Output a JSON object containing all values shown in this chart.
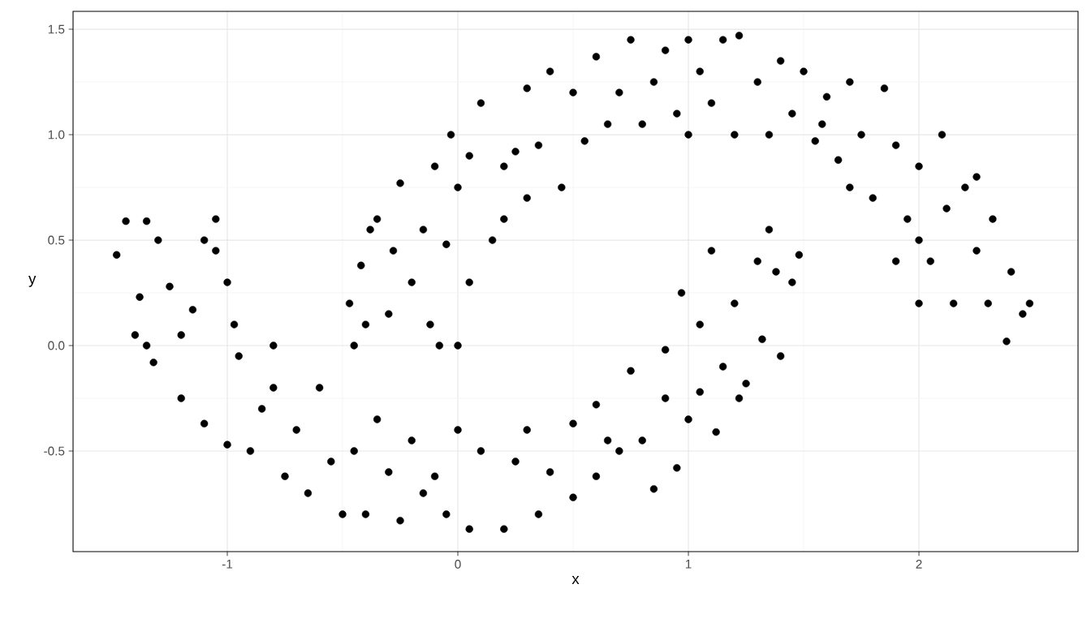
{
  "chart_data": {
    "type": "scatter",
    "xlabel": "x",
    "ylabel": "y",
    "xlim": [
      -1.669,
      2.69
    ],
    "ylim": [
      -0.977,
      1.585
    ],
    "xticks": [
      -1,
      0,
      1,
      2
    ],
    "yticks": [
      -0.5,
      {
        "value": 0,
        "label": "0.0"
      },
      0.5,
      {
        "value": 1,
        "label": "1.0"
      },
      1.5
    ],
    "grid": true,
    "marker": "circle",
    "series": [
      {
        "color": "#000000",
        "x": [
          -1.48,
          -1.44,
          -1.38,
          -1.35,
          -1.3,
          -1.35,
          -1.32,
          -1.25,
          -1.2,
          -1.15,
          -1.1,
          -1.05,
          -1.05,
          -1.1,
          -1.0,
          -1.0,
          -0.95,
          -0.9,
          -0.85,
          -0.8,
          -0.75,
          -0.7,
          -0.65,
          -0.6,
          -0.5,
          -0.45,
          -0.4,
          -0.35,
          -0.3,
          -0.25,
          -0.2,
          -0.1,
          -0.05,
          0.0,
          0.05,
          0.1,
          0.2,
          0.25,
          0.3,
          0.35,
          0.4,
          0.5,
          0.5,
          0.6,
          0.6,
          0.7,
          0.75,
          0.8,
          0.85,
          0.9,
          0.95,
          0.97,
          1.0,
          1.05,
          1.1,
          1.12,
          1.15,
          1.2,
          1.25,
          1.3,
          1.32,
          1.35,
          1.4,
          1.45,
          1.48,
          1.38,
          1.05,
          0.9,
          0.65,
          -0.15,
          -0.55,
          -0.8,
          -1.2,
          -1.4,
          -0.97,
          1.22,
          -0.47,
          -0.45,
          -0.42,
          -0.4,
          -0.35,
          -0.3,
          -0.28,
          -0.25,
          -0.2,
          -0.15,
          -0.1,
          -0.08,
          -0.05,
          -0.03,
          0.0,
          0.0,
          0.05,
          0.05,
          0.1,
          0.15,
          0.2,
          0.2,
          0.3,
          0.3,
          0.35,
          0.4,
          0.45,
          0.5,
          0.55,
          0.6,
          0.65,
          0.7,
          0.75,
          0.8,
          0.85,
          0.9,
          0.95,
          1.0,
          1.0,
          1.05,
          1.1,
          1.15,
          1.2,
          1.22,
          1.3,
          1.35,
          1.4,
          1.45,
          1.5,
          1.55,
          1.6,
          1.65,
          1.7,
          1.7,
          1.75,
          1.8,
          1.85,
          1.9,
          1.95,
          2.0,
          2.0,
          2.05,
          2.1,
          2.12,
          2.15,
          2.2,
          2.25,
          2.3,
          2.32,
          2.38,
          2.4,
          2.45,
          2.48,
          2.0,
          1.9,
          2.25,
          1.58,
          0.25,
          -0.38,
          -0.12
        ],
        "values": [
          0.43,
          0.59,
          0.23,
          0.59,
          0.5,
          0.0,
          -0.08,
          0.28,
          -0.25,
          0.17,
          0.5,
          0.6,
          0.45,
          -0.37,
          -0.47,
          0.3,
          -0.05,
          -0.5,
          -0.3,
          0.0,
          -0.62,
          -0.4,
          -0.7,
          -0.2,
          -0.8,
          -0.5,
          -0.8,
          -0.35,
          -0.6,
          -0.83,
          -0.45,
          -0.62,
          -0.8,
          -0.4,
          -0.87,
          -0.5,
          -0.87,
          -0.55,
          -0.4,
          -0.8,
          -0.6,
          -0.37,
          -0.72,
          -0.28,
          -0.62,
          -0.5,
          -0.12,
          -0.45,
          -0.68,
          -0.02,
          -0.58,
          0.25,
          -0.35,
          0.1,
          0.45,
          -0.41,
          -0.1,
          0.2,
          -0.18,
          0.4,
          0.03,
          0.55,
          -0.05,
          0.3,
          0.43,
          0.35,
          -0.22,
          -0.25,
          -0.45,
          -0.7,
          -0.55,
          -0.2,
          0.05,
          0.05,
          0.1,
          -0.25,
          0.2,
          0.0,
          0.38,
          0.1,
          0.6,
          0.15,
          0.45,
          0.77,
          0.3,
          0.55,
          0.85,
          0.0,
          0.48,
          1.0,
          0.0,
          0.75,
          0.9,
          0.3,
          1.15,
          0.5,
          0.85,
          0.6,
          1.22,
          0.7,
          0.95,
          1.3,
          0.75,
          1.2,
          0.97,
          1.37,
          1.05,
          1.2,
          1.45,
          1.05,
          1.25,
          1.4,
          1.1,
          1.45,
          1.0,
          1.3,
          1.15,
          1.45,
          1.0,
          1.47,
          1.25,
          1.0,
          1.35,
          1.1,
          1.3,
          0.97,
          1.18,
          0.88,
          1.25,
          0.75,
          1.0,
          0.7,
          1.22,
          0.95,
          0.6,
          0.85,
          0.2,
          0.4,
          1.0,
          0.65,
          0.2,
          0.75,
          0.45,
          0.2,
          0.6,
          0.02,
          0.35,
          0.15,
          0.2,
          0.5,
          0.4,
          0.8,
          1.05,
          0.92,
          0.55,
          0.1
        ]
      }
    ]
  }
}
